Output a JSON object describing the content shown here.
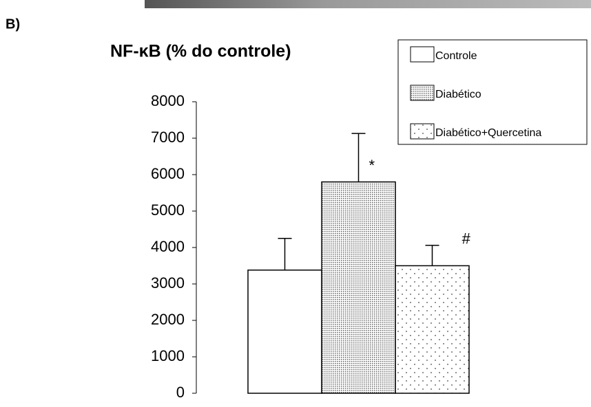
{
  "panel_label": "B)",
  "chart_data": {
    "type": "bar",
    "title": "NF-κB (% do controle)",
    "ylim": [
      0,
      8000
    ],
    "yticks": [
      0,
      1000,
      2000,
      3000,
      4000,
      5000,
      6000,
      7000,
      8000
    ],
    "grid": false,
    "legend": "upper right",
    "series": [
      {
        "name": "Controle",
        "pattern": "none",
        "values": [
          3380
        ],
        "errors": [
          870
        ]
      },
      {
        "name": "Diabético",
        "pattern": "dense",
        "values": [
          5800
        ],
        "errors": [
          1330
        ],
        "annotation": "*"
      },
      {
        "name": "Diabético+Quercetina",
        "pattern": "sparse",
        "values": [
          3500
        ],
        "errors": [
          560
        ],
        "annotation": "#"
      }
    ]
  }
}
